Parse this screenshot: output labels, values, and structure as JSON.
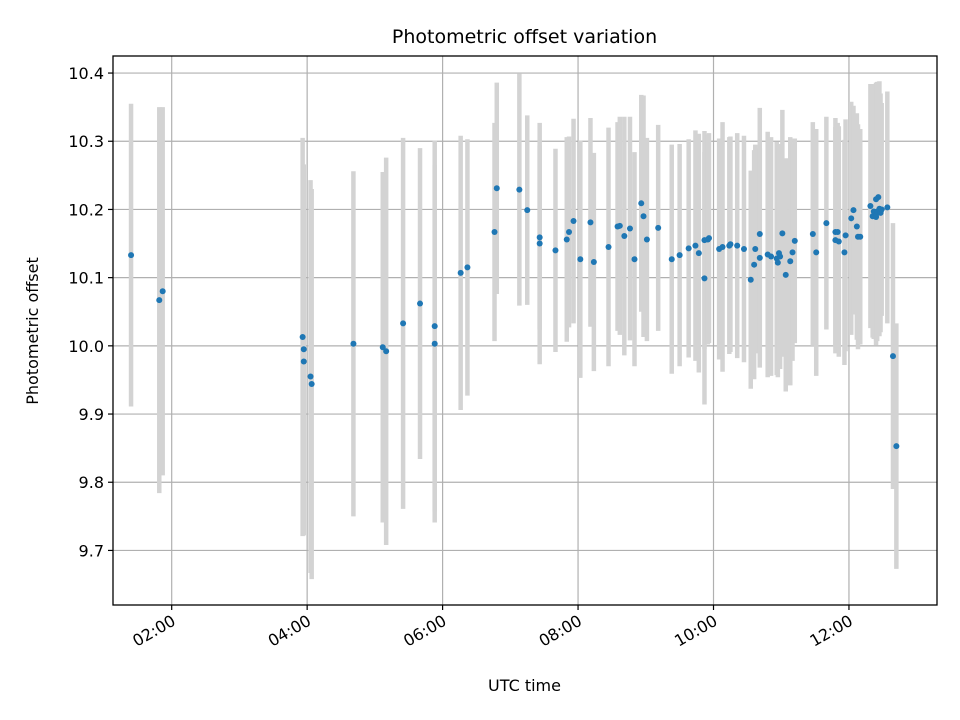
{
  "chart_data": {
    "type": "scatter",
    "title": "Photometric offset variation",
    "xlabel": "UTC time",
    "ylabel": "Photometric offset",
    "x_unit": "UTC hours",
    "xlim": [
      "01:08",
      "13:18"
    ],
    "ylim": [
      9.62,
      10.425
    ],
    "x_ticks": [
      "02:00",
      "04:00",
      "06:00",
      "08:00",
      "10:00",
      "12:00"
    ],
    "y_ticks": [
      9.7,
      9.8,
      9.9,
      10.0,
      10.1,
      10.2,
      10.3,
      10.4
    ],
    "y_tick_labels": [
      "9.7",
      "9.8",
      "9.9",
      "10.0",
      "10.1",
      "10.2",
      "10.3",
      "10.4"
    ],
    "grid": true,
    "legend": "none",
    "colors": {
      "points": "#1f77b4",
      "errorbars": "#d3d3d3",
      "grid": "#b0b0b0"
    },
    "series": [
      {
        "x": [
          "01:24",
          "01:49",
          "01:52",
          "03:56",
          "03:57",
          "03:57",
          "04:03",
          "04:04",
          "04:41",
          "05:07",
          "05:10",
          "05:25",
          "05:40",
          "05:53",
          "05:53",
          "06:16",
          "06:22",
          "06:46",
          "06:48",
          "07:08",
          "07:15",
          "07:26",
          "07:26",
          "07:40",
          "07:50",
          "07:52",
          "07:56",
          "08:02",
          "08:11",
          "08:14",
          "08:27",
          "08:35",
          "08:37",
          "08:41",
          "08:46",
          "08:50",
          "08:56",
          "08:58",
          "09:01",
          "09:11",
          "09:23",
          "09:30",
          "09:38",
          "09:44",
          "09:47",
          "09:52",
          "09:52",
          "09:55",
          "09:56",
          "10:05",
          "10:08",
          "10:14",
          "10:15",
          "10:21",
          "10:27",
          "10:33",
          "10:36",
          "10:37",
          "10:41",
          "10:41",
          "10:48",
          "10:51",
          "10:56",
          "10:57",
          "10:58",
          "10:59",
          "11:01",
          "11:04",
          "11:08",
          "11:10",
          "11:12",
          "11:28",
          "11:31",
          "11:40",
          "11:48",
          "11:48",
          "11:50",
          "11:51",
          "11:56",
          "11:57",
          "12:02",
          "12:04",
          "12:07",
          "12:08",
          "12:10",
          "12:19",
          "12:21",
          "12:22",
          "12:24",
          "12:24",
          "12:24",
          "12:25",
          "12:26",
          "12:27",
          "12:28",
          "12:29",
          "12:34",
          "12:39",
          "12:42"
        ],
        "y": [
          10.133,
          10.067,
          10.08,
          10.013,
          9.995,
          9.977,
          9.955,
          9.944,
          10.003,
          9.998,
          9.992,
          10.033,
          10.062,
          10.029,
          10.003,
          10.107,
          10.115,
          10.167,
          10.231,
          10.229,
          10.199,
          10.159,
          10.15,
          10.14,
          10.156,
          10.167,
          10.183,
          10.127,
          10.181,
          10.123,
          10.145,
          10.175,
          10.176,
          10.161,
          10.172,
          10.127,
          10.209,
          10.19,
          10.156,
          10.173,
          10.127,
          10.133,
          10.143,
          10.147,
          10.136,
          10.155,
          10.099,
          10.156,
          10.158,
          10.142,
          10.145,
          10.147,
          10.149,
          10.147,
          10.142,
          10.097,
          10.119,
          10.142,
          10.129,
          10.164,
          10.134,
          10.131,
          10.128,
          10.122,
          10.136,
          10.131,
          10.165,
          10.104,
          10.124,
          10.137,
          10.154,
          10.164,
          10.137,
          10.18,
          10.167,
          10.155,
          10.167,
          10.153,
          10.137,
          10.162,
          10.187,
          10.199,
          10.175,
          10.16,
          10.16,
          10.205,
          10.19,
          10.197,
          10.215,
          10.189,
          10.19,
          10.197,
          10.218,
          10.201,
          10.195,
          10.2,
          10.203,
          9.985,
          9.853
        ],
        "yerr": [
          0.222,
          0.283,
          0.27,
          0.292,
          0.271,
          0.255,
          0.288,
          0.286,
          0.253,
          0.257,
          0.284,
          0.272,
          0.228,
          0.272,
          0.262,
          0.201,
          0.188,
          0.16,
          0.155,
          0.17,
          0.139,
          0.135,
          0.177,
          0.149,
          0.15,
          0.14,
          0.15,
          0.174,
          0.153,
          0.16,
          0.175,
          0.153,
          0.16,
          0.175,
          0.164,
          0.157,
          0.159,
          0.177,
          0.149,
          0.151,
          0.168,
          0.163,
          0.16,
          0.169,
          0.175,
          0.16,
          0.185,
          0.154,
          0.154,
          0.162,
          0.183,
          0.159,
          0.158,
          0.165,
          0.166,
          0.16,
          0.168,
          0.153,
          0.161,
          0.185,
          0.18,
          0.175,
          0.171,
          0.168,
          0.159,
          0.165,
          0.181,
          0.171,
          0.182,
          0.159,
          0.15,
          0.164,
          0.181,
          0.156,
          0.167,
          0.166,
          0.16,
          0.169,
          0.165,
          0.17,
          0.171,
          0.153,
          0.166,
          0.165,
          0.158,
          0.179,
          0.178,
          0.187,
          0.171,
          0.181,
          0.189,
          0.19,
          0.169,
          0.187,
          0.175,
          0.156,
          0.17,
          0.195,
          0.18
        ]
      }
    ]
  }
}
